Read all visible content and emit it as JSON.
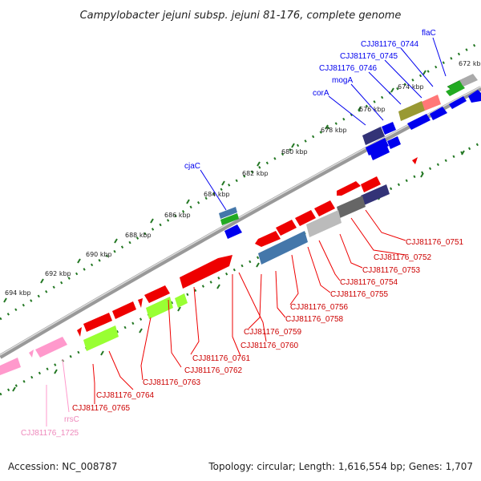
{
  "title": "Campylobacter jejuni subsp. jejuni 81-176, complete genome",
  "footer": {
    "accession": "Accession: NC_008787",
    "summary": "Topology: circular; Length: 1,616,554 bp; Genes: 1,707"
  },
  "ticks": [
    "672 kbp",
    "674 kbp",
    "676 kbp",
    "678 kbp",
    "680 kbp",
    "682 kbp",
    "684 kbp",
    "686 kbp",
    "688 kbp",
    "690 kbp",
    "692 kbp",
    "694 kbp"
  ],
  "labels_top": [
    "flaC",
    "CJJ81176_0744",
    "CJJ81176_0745",
    "CJJ81176_0746",
    "mogA",
    "corA",
    "cjaC"
  ],
  "labels_bottom": [
    "CJJ81176_0751",
    "CJJ81176_0752",
    "CJJ81176_0753",
    "CJJ81176_0754",
    "CJJ81176_0755",
    "CJJ81176_0756",
    "CJJ81176_0758",
    "CJJ81176_0759",
    "CJJ81176_0760",
    "CJJ81176_0761",
    "CJJ81176_0762",
    "CJJ81176_0763",
    "CJJ81176_0764",
    "CJJ81176_0765",
    "rrsC",
    "CJJ81176_1725"
  ],
  "colors": {
    "forward_cds": "#0000ee",
    "reverse_cds": "#ee0000",
    "rrna": "#ff99cc",
    "green_gene": "#22aa22",
    "lime_gene": "#99ff33",
    "steel_gene": "#4477aa",
    "gray_gene": "#999999",
    "dark_purple_gene": "#333377",
    "olive_gene": "#999933",
    "pink_gene": "#ff7777",
    "dot_ring": "#227722",
    "backbone": "#888888"
  }
}
